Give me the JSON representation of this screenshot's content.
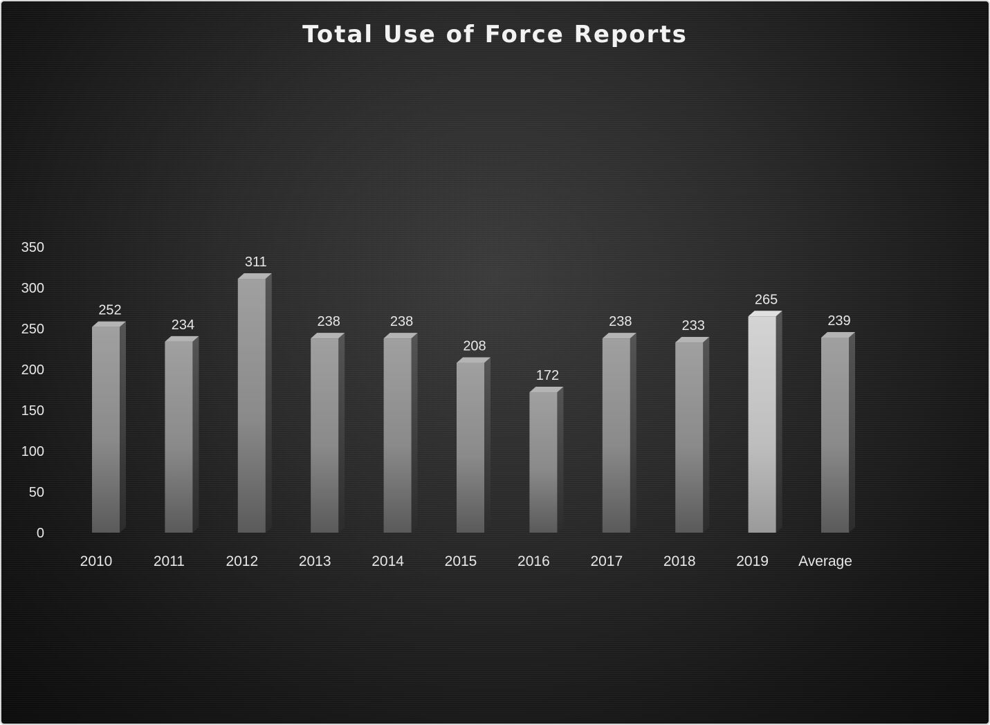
{
  "chart_data": {
    "type": "bar",
    "title": "Total Use of Force Reports",
    "categories": [
      "2010",
      "2011",
      "2012",
      "2013",
      "2014",
      "2015",
      "2016",
      "2017",
      "2018",
      "2019",
      "Average"
    ],
    "values": [
      252,
      234,
      311,
      238,
      238,
      208,
      172,
      238,
      233,
      265,
      239
    ],
    "data_labels": [
      "252",
      "234",
      "311",
      "238",
      "238",
      "208",
      "172",
      "238",
      "233",
      "265",
      "239"
    ],
    "y_ticks": [
      "0",
      "50",
      "100",
      "150",
      "200",
      "250",
      "300",
      "350"
    ],
    "ylim": [
      0,
      350
    ],
    "xlabel": "",
    "ylabel": "",
    "grid": false,
    "legend": "none",
    "colors": {
      "bar": "#8e8e8e",
      "highlight_bar": "#c4c4c4",
      "background": "#262626",
      "text": "#e8e8e8"
    },
    "highlight_index": 9
  }
}
